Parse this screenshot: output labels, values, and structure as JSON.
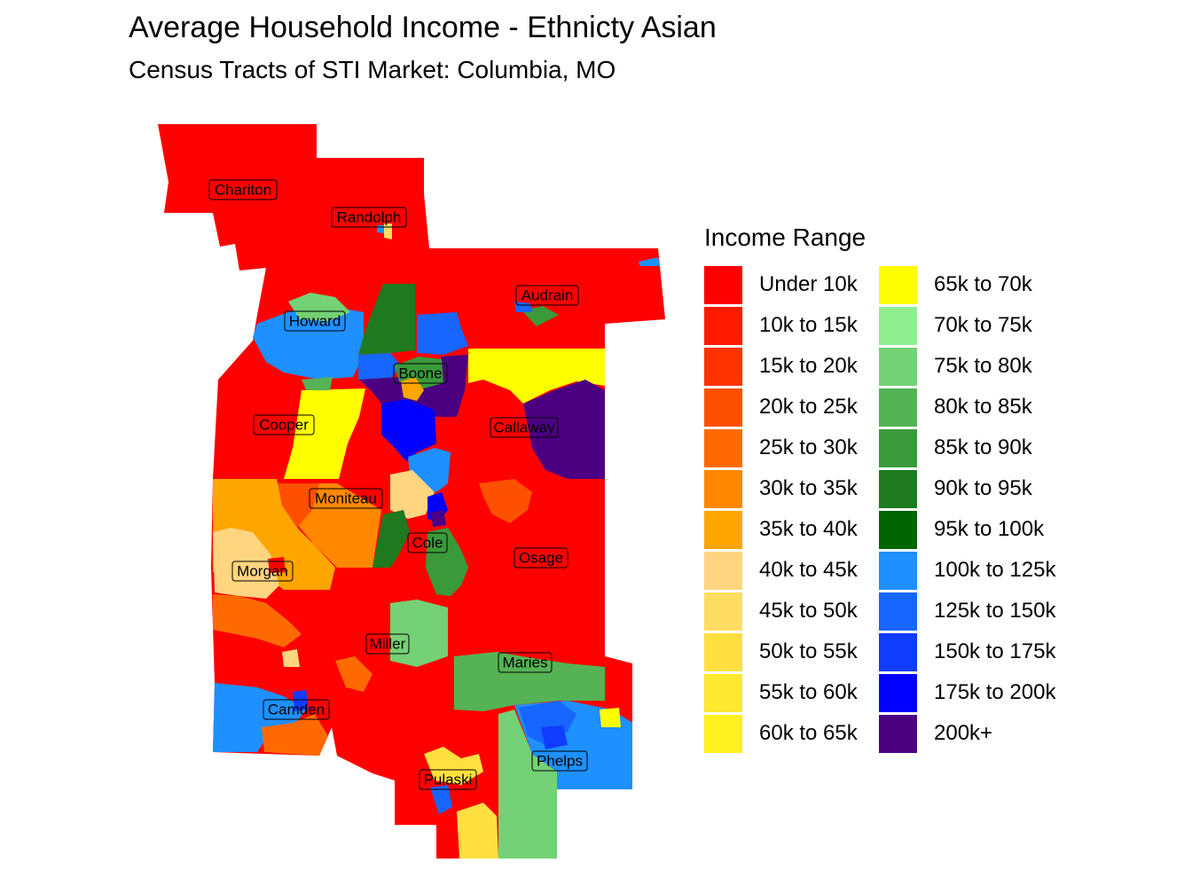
{
  "title": "Average Household Income - Ethnicty Asian",
  "subtitle": "Census Tracts of STI Market: Columbia, MO",
  "legend": {
    "title": "Income Range",
    "items": [
      {
        "label": "Under 10k",
        "color": "#ff0000"
      },
      {
        "label": "10k to 15k",
        "color": "#ff1a00"
      },
      {
        "label": "15k to 20k",
        "color": "#ff3300"
      },
      {
        "label": "20k to 25k",
        "color": "#ff5000"
      },
      {
        "label": "25k to 30k",
        "color": "#ff6a00"
      },
      {
        "label": "30k to 35k",
        "color": "#ff8800"
      },
      {
        "label": "35k to 40k",
        "color": "#ffa500"
      },
      {
        "label": "40k to 45k",
        "color": "#ffd580"
      },
      {
        "label": "45k to 50k",
        "color": "#ffdd60"
      },
      {
        "label": "50k to 55k",
        "color": "#ffe040"
      },
      {
        "label": "55k to 60k",
        "color": "#ffe830"
      },
      {
        "label": "60k to 65k",
        "color": "#fff020"
      },
      {
        "label": "65k to 70k",
        "color": "#ffff00"
      },
      {
        "label": "70k to 75k",
        "color": "#90ee90"
      },
      {
        "label": "75k to 80k",
        "color": "#75d175"
      },
      {
        "label": "80k to 85k",
        "color": "#55b355"
      },
      {
        "label": "85k to 90k",
        "color": "#3a9a3a"
      },
      {
        "label": "90k to 95k",
        "color": "#1f7a1f"
      },
      {
        "label": "95k to 100k",
        "color": "#006400"
      },
      {
        "label": "100k to 125k",
        "color": "#1e90ff"
      },
      {
        "label": "125k to 150k",
        "color": "#1766ff"
      },
      {
        "label": "150k to 175k",
        "color": "#0f3cff"
      },
      {
        "label": "175k to 200k",
        "color": "#0000ff"
      },
      {
        "label": "200k+",
        "color": "#4b0082"
      }
    ]
  },
  "counties": [
    {
      "name": "Chariton",
      "income_range": "Under 10k"
    },
    {
      "name": "Randolph",
      "income_range": "Under 10k"
    },
    {
      "name": "Audrain",
      "income_range": "Under 10k"
    },
    {
      "name": "Howard",
      "income_range": "100k to 125k"
    },
    {
      "name": "Boone",
      "income_range": "175k to 200k"
    },
    {
      "name": "Cooper",
      "income_range": "Under 10k"
    },
    {
      "name": "Callaway",
      "income_range": "200k+"
    },
    {
      "name": "Moniteau",
      "income_range": "30k to 35k"
    },
    {
      "name": "Cole",
      "income_range": "95k to 100k"
    },
    {
      "name": "Osage",
      "income_range": "Under 10k"
    },
    {
      "name": "Morgan",
      "income_range": "40k to 45k"
    },
    {
      "name": "Miller",
      "income_range": "75k to 80k"
    },
    {
      "name": "Maries",
      "income_range": "80k to 85k"
    },
    {
      "name": "Camden",
      "income_range": "100k to 125k"
    },
    {
      "name": "Phelps",
      "income_range": "125k to 150k"
    },
    {
      "name": "Pulaski",
      "income_range": "Under 10k"
    }
  ]
}
